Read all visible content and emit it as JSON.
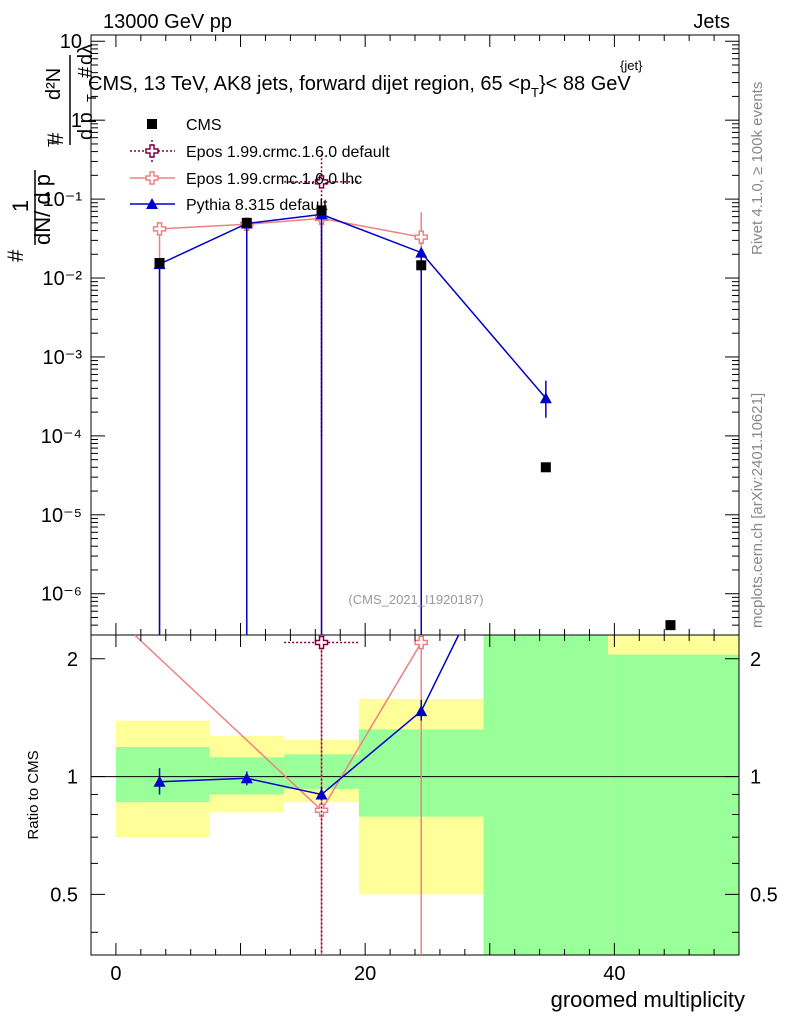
{
  "header": {
    "left": "13000 GeV pp",
    "right": "Jets",
    "title": "CMS, 13 TeV, AK8 jets, forward dijet region, 65 <p",
    "title_sub": "T",
    "title_sup": "{jet}",
    "title_end": "}< 88 GeV"
  },
  "side": {
    "rivet": "Rivet 4.1.0, ≥ 100k events",
    "mcplots": "mcplots.cern.ch [arXiv:2401.10621]"
  },
  "watermark": "(CMS_2021_I1920187)",
  "axes": {
    "xlabel": "groomed multiplicity",
    "ratio_ylabel": "Ratio to CMS",
    "ylabel_parts": [
      "#",
      "1",
      "dN/ d p",
      "T",
      "#",
      "d p",
      "T",
      "#",
      "d²N",
      "dλ"
    ]
  },
  "legend": [
    {
      "label": "CMS",
      "color": "#000000",
      "marker": "square"
    },
    {
      "label": "Epos 1.99.crmc.1.6.0 default",
      "color": "#800040",
      "marker": "cross"
    },
    {
      "label": "Epos 1.99.crmc.1.6.0 lhc",
      "color": "#f08080",
      "marker": "cross"
    },
    {
      "label": "Pythia 8.315 default",
      "color": "#0000cc",
      "marker": "triangle"
    }
  ],
  "chart_data": {
    "type": "scatter",
    "x_range": [
      -2,
      50
    ],
    "y_log": true,
    "y_range": [
      3e-07,
      12
    ],
    "ratio_range": [
      0.35,
      2.3
    ],
    "xticks": [
      0,
      20,
      40
    ],
    "xtick_labels": [
      "0",
      "20",
      "40"
    ],
    "ytick_labels": [
      "10",
      "1",
      "10⁻¹",
      "10⁻²",
      "10⁻³",
      "10⁻⁴",
      "10⁻⁵",
      "10⁻⁶"
    ],
    "ratio_ticks": [
      0.5,
      1,
      2
    ],
    "ratio_tick_labels": [
      "0.5",
      "1",
      "2"
    ],
    "bins": [
      [
        0,
        7.5
      ],
      [
        7.5,
        13.5
      ],
      [
        13.5,
        19.5
      ],
      [
        19.5,
        29.5
      ],
      [
        29.5,
        39.5
      ],
      [
        39.5,
        50
      ]
    ],
    "bin_centers": [
      3.5,
      10.5,
      16.5,
      24.5,
      34.5,
      44.5
    ],
    "series": [
      {
        "name": "CMS",
        "values": [
          0.0155,
          0.05,
          0.072,
          0.0145,
          4e-05,
          4e-07
        ]
      },
      {
        "name": "Epos 1.99.crmc.1.6.0 default",
        "x": [
          16.5
        ],
        "values": [
          0.165
        ],
        "xerr": [
          [
            13.5,
            19.5
          ]
        ],
        "yerr": [
          [
            0.0001,
            0.37
          ]
        ]
      },
      {
        "name": "Epos 1.99.crmc.1.6.0 lhc",
        "x": [
          3.5,
          10.5,
          16.5,
          24.5
        ],
        "values": [
          0.042,
          0.048,
          0.057,
          0.033
        ],
        "yerr": [
          [
            1e-09,
            0.042
          ],
          [
            0.048,
            0.048
          ],
          [
            1e-09,
            0.057
          ],
          [
            1e-09,
            0.068
          ]
        ]
      },
      {
        "name": "Pythia 8.315 default",
        "x": [
          3.5,
          10.5,
          16.5,
          24.5,
          34.5
        ],
        "values": [
          0.015,
          0.049,
          0.064,
          0.021,
          0.0003
        ],
        "yerr": [
          [
            0.015,
            0.015
          ],
          [
            0.049,
            0.049
          ],
          [
            0.064,
            0.064
          ],
          [
            0.021,
            0.021
          ],
          [
            0.00013,
            0.0005
          ]
        ]
      }
    ],
    "ratio": {
      "yellow_bands": [
        [
          0.7,
          1.39
        ],
        [
          0.81,
          1.27
        ],
        [
          0.86,
          1.24
        ],
        [
          0.5,
          1.58
        ],
        [
          0.3,
          2.3
        ],
        [
          0.3,
          2.3
        ]
      ],
      "green_bands": [
        [
          0.86,
          1.19
        ],
        [
          0.9,
          1.12
        ],
        [
          0.93,
          1.14
        ],
        [
          0.79,
          1.32
        ],
        [
          0.3,
          2.3
        ],
        [
          0.3,
          2.05
        ]
      ],
      "pythia": {
        "x": [
          3.5,
          10.5,
          16.5,
          24.5,
          27.5
        ],
        "values": [
          0.97,
          0.99,
          0.9,
          1.47,
          2.3
        ],
        "yerr": [
          [
            0.9,
            1.05
          ],
          [
            0.95,
            1.03
          ],
          [
            0.87,
            0.94
          ],
          [
            1.39,
            1.57
          ],
          null
        ]
      },
      "epos_lhc": {
        "x": [
          1.5,
          16.5,
          24.5
        ],
        "values": [
          2.3,
          0.82,
          2.2
        ]
      },
      "epos_default": {
        "x": [
          16.5
        ],
        "values": [
          2.2
        ],
        "xerr": [
          [
            13.5,
            19.5
          ]
        ]
      }
    }
  }
}
